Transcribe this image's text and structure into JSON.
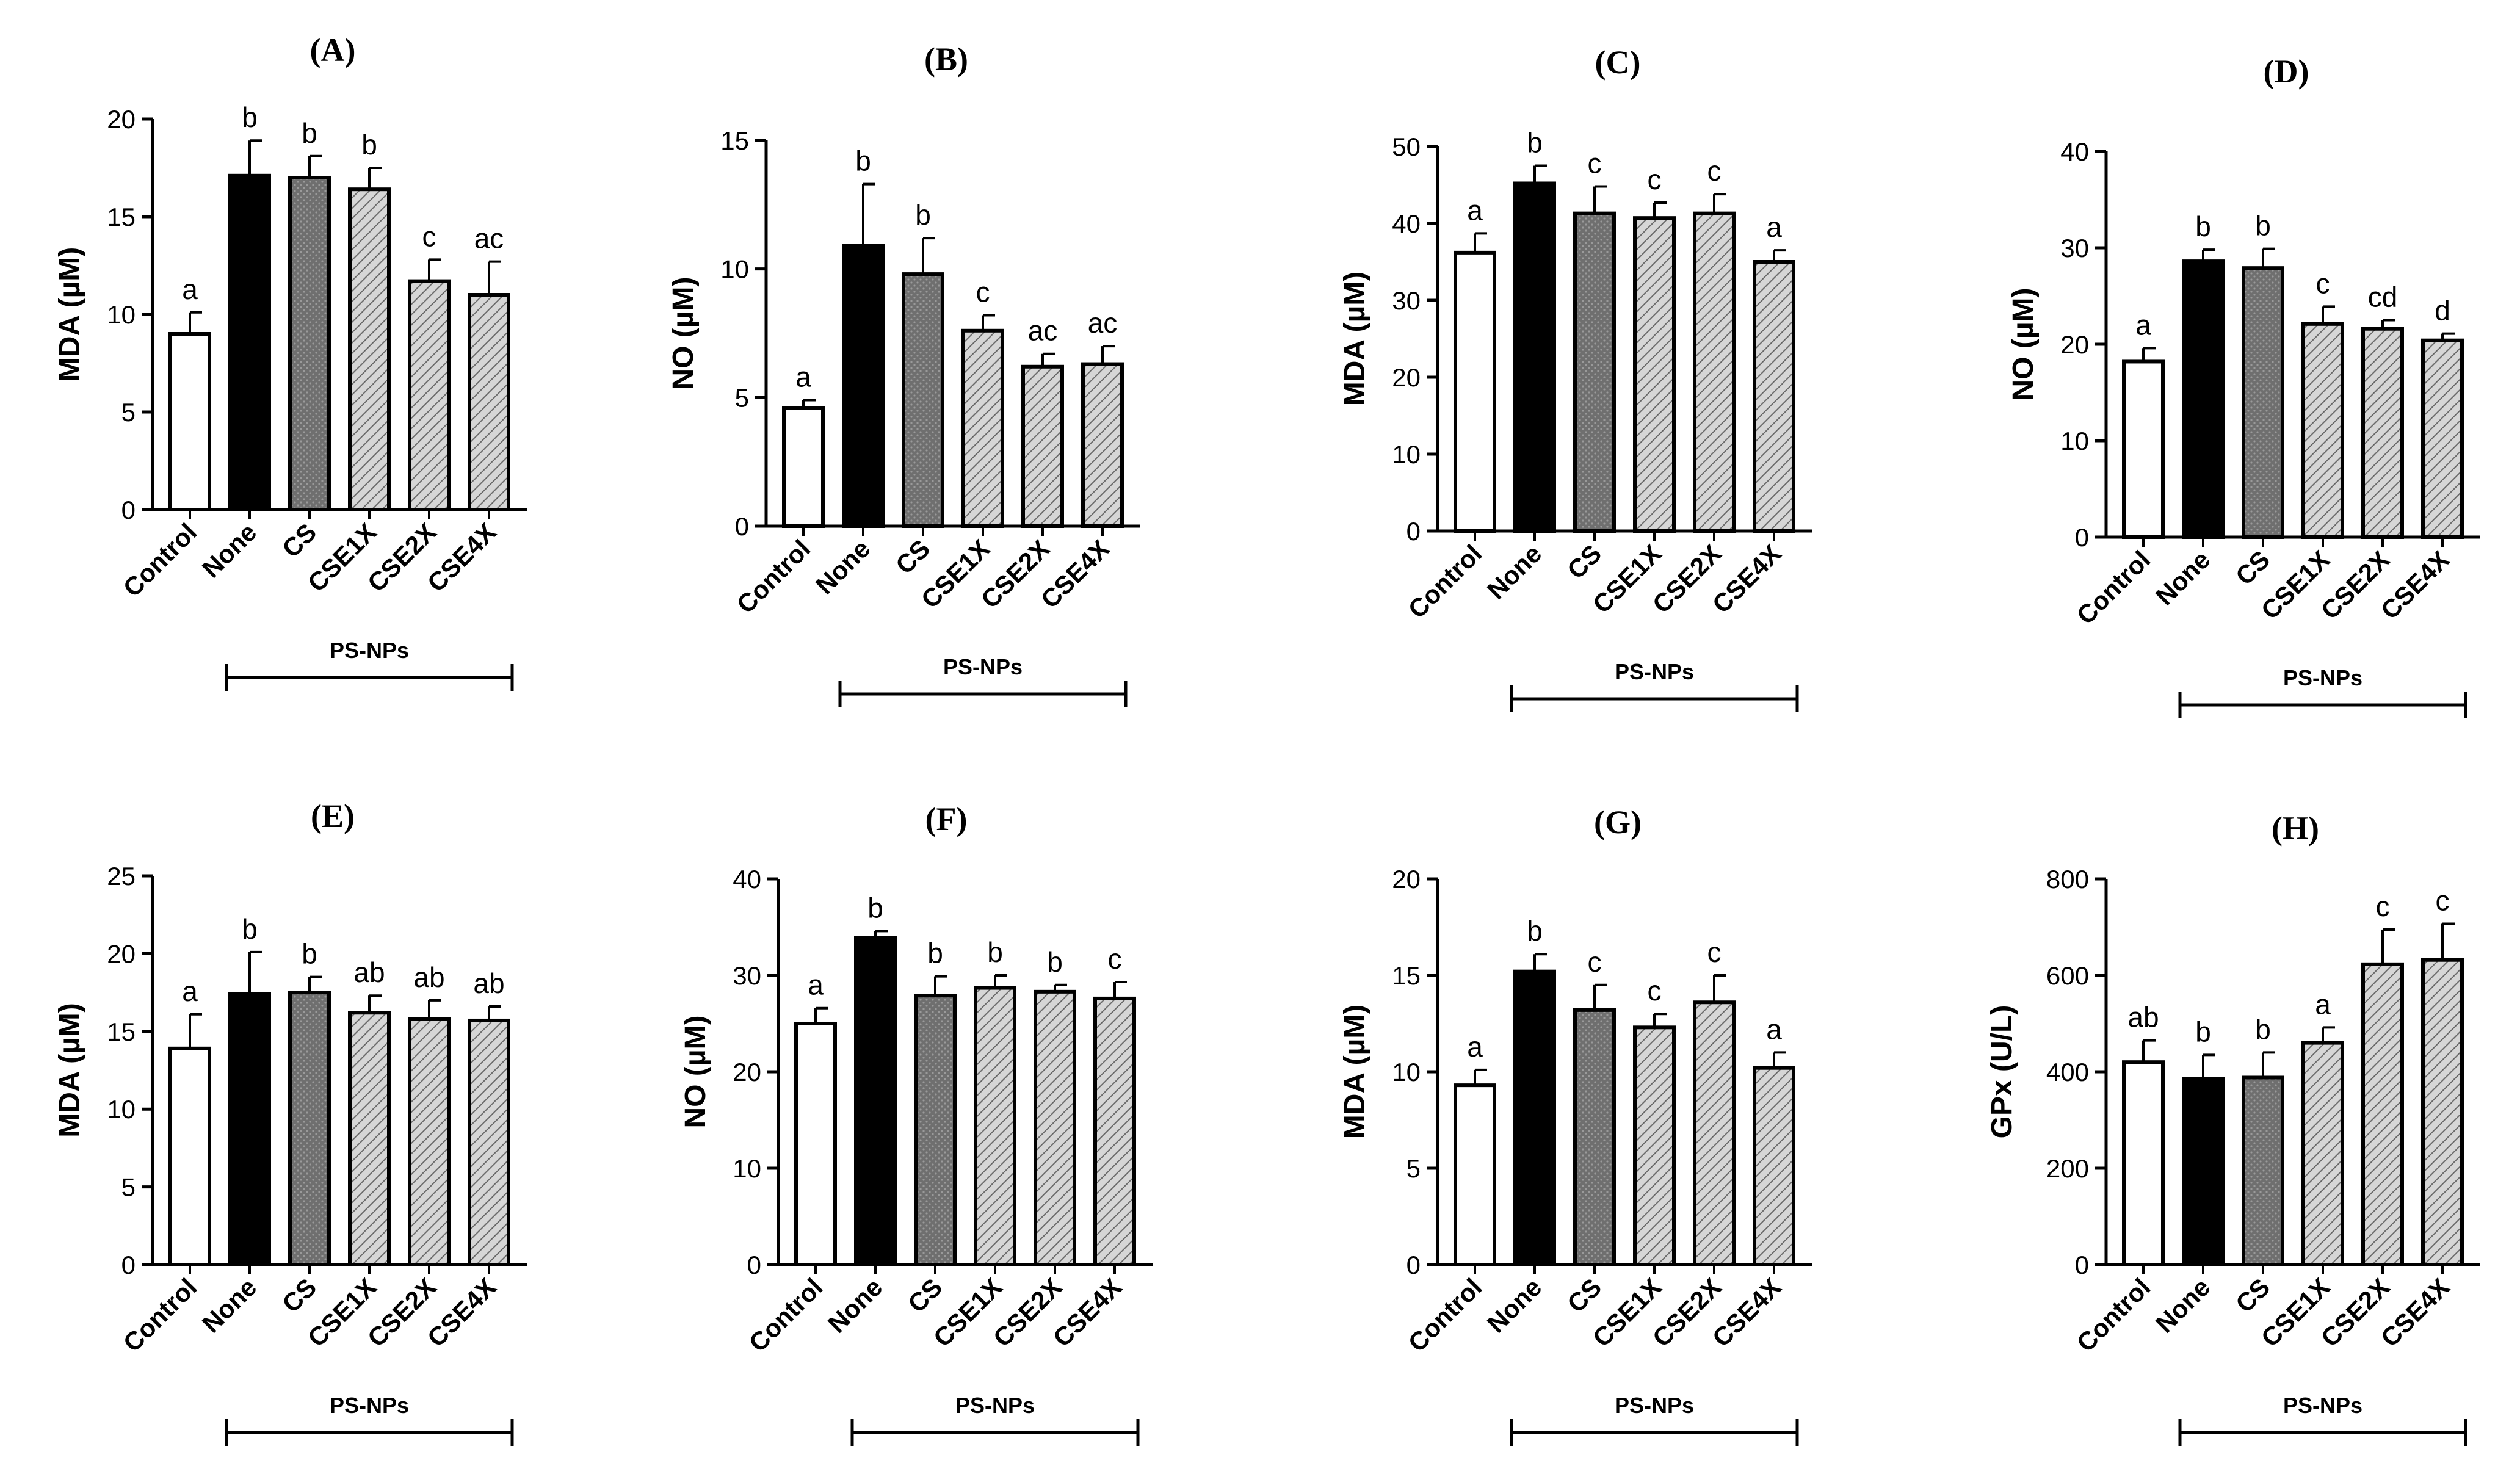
{
  "chart_data": [
    {
      "panel": "(A)",
      "type": "bar",
      "ylabel": "MDA (µM)",
      "ylim": [
        0,
        20
      ],
      "yticks": [
        0,
        5,
        10,
        15,
        20
      ],
      "categories": [
        "Control",
        "None",
        "CS",
        "CSE1X",
        "CSE2X",
        "CSE4X"
      ],
      "values": [
        9,
        17.1,
        17,
        16.4,
        11.7,
        11
      ],
      "errors": [
        1.1,
        1.8,
        1.1,
        1.1,
        1.1,
        1.7
      ],
      "letters": [
        "a",
        "b",
        "b",
        "b",
        "c",
        "ac"
      ],
      "group_label": "PS-NPs"
    },
    {
      "panel": "(B)",
      "type": "bar",
      "ylabel": "NO (µM)",
      "ylim": [
        0,
        15
      ],
      "yticks": [
        0,
        5,
        10,
        15
      ],
      "categories": [
        "Control",
        "None",
        "CS",
        "CSE1X",
        "CSE2X",
        "CSE4X"
      ],
      "values": [
        4.6,
        10.9,
        9.8,
        7.6,
        6.2,
        6.3
      ],
      "errors": [
        0.3,
        2.4,
        1.4,
        0.6,
        0.5,
        0.7
      ],
      "letters": [
        "a",
        "b",
        "b",
        "c",
        "ac",
        "ac"
      ],
      "group_label": "PS-NPs"
    },
    {
      "panel": "(C)",
      "type": "bar",
      "ylabel": "MDA (µM)",
      "ylim": [
        0,
        50
      ],
      "yticks": [
        0,
        10,
        20,
        30,
        40,
        50
      ],
      "categories": [
        "Control",
        "None",
        "CS",
        "CSE1X",
        "CSE2X",
        "CSE4X"
      ],
      "values": [
        36.2,
        45.2,
        41.3,
        40.7,
        41.3,
        35
      ],
      "errors": [
        2.5,
        2.3,
        3.5,
        2,
        2.5,
        1.5
      ],
      "letters": [
        "a",
        "b",
        "c",
        "c",
        "c",
        "a"
      ],
      "group_label": "PS-NPs"
    },
    {
      "panel": "(D)",
      "type": "bar",
      "ylabel": "NO (µM)",
      "ylim": [
        0,
        40
      ],
      "yticks": [
        0,
        10,
        20,
        30,
        40
      ],
      "categories": [
        "Control",
        "None",
        "CS",
        "CSE1X",
        "CSE2X",
        "CSE4X"
      ],
      "values": [
        18.2,
        28.6,
        27.9,
        22.1,
        21.6,
        20.4
      ],
      "errors": [
        1.4,
        1.2,
        2,
        1.8,
        0.9,
        0.7
      ],
      "letters": [
        "a",
        "b",
        "b",
        "c",
        "cd",
        "d"
      ],
      "group_label": "PS-NPs"
    },
    {
      "panel": "(E)",
      "type": "bar",
      "ylabel": "MDA (µM)",
      "ylim": [
        0,
        25
      ],
      "yticks": [
        0,
        5,
        10,
        15,
        20,
        25
      ],
      "categories": [
        "Control",
        "None",
        "CS",
        "CSE1X",
        "CSE2X",
        "CSE4X"
      ],
      "values": [
        13.9,
        17.4,
        17.5,
        16.2,
        15.8,
        15.7
      ],
      "errors": [
        2.2,
        2.7,
        1,
        1.1,
        1.2,
        0.9
      ],
      "letters": [
        "a",
        "b",
        "b",
        "ab",
        "ab",
        "ab"
      ],
      "group_label": "PS-NPs"
    },
    {
      "panel": "(F)",
      "type": "bar",
      "ylabel": "NO (µM)",
      "ylim": [
        0,
        40
      ],
      "yticks": [
        0,
        10,
        20,
        30,
        40
      ],
      "categories": [
        "Control",
        "None",
        "CS",
        "CSE1X",
        "CSE2X",
        "CSE4X"
      ],
      "values": [
        25,
        33.9,
        27.9,
        28.7,
        28.3,
        27.6
      ],
      "errors": [
        1.6,
        0.7,
        2,
        1.3,
        0.7,
        1.7
      ],
      "letters": [
        "a",
        "b",
        "b",
        "b",
        "b",
        "c"
      ],
      "group_label": "PS-NPs"
    },
    {
      "panel": "(G)",
      "type": "bar",
      "ylabel": "MDA (µM)",
      "ylim": [
        0,
        20
      ],
      "yticks": [
        0,
        5,
        10,
        15,
        20
      ],
      "categories": [
        "Control",
        "None",
        "CS",
        "CSE1X",
        "CSE2X",
        "CSE4X"
      ],
      "values": [
        9.3,
        15.2,
        13.2,
        12.3,
        13.6,
        10.2
      ],
      "errors": [
        0.8,
        0.9,
        1.3,
        0.7,
        1.4,
        0.8
      ],
      "letters": [
        "a",
        "b",
        "c",
        "c",
        "c",
        "a"
      ],
      "group_label": "PS-NPs"
    },
    {
      "panel": "(H)",
      "type": "bar",
      "ylabel": "GPx (U/L)",
      "ylim": [
        0,
        800
      ],
      "yticks": [
        0,
        200,
        400,
        600,
        800
      ],
      "categories": [
        "Control",
        "None",
        "CS",
        "CSE1X",
        "CSE2X",
        "CSE4X"
      ],
      "values": [
        420,
        385,
        388,
        460,
        623,
        632
      ],
      "errors": [
        45,
        50,
        52,
        32,
        72,
        75
      ],
      "letters": [
        "ab",
        "b",
        "b",
        "a",
        "c",
        "c"
      ],
      "group_label": "PS-NPs"
    }
  ],
  "colors": {
    "control_fill": "#ffffff",
    "none_fill": "#000000",
    "cs_fill": "#7a7a7a",
    "cse_fill": "#bcbcbc",
    "stroke": "#000000"
  }
}
